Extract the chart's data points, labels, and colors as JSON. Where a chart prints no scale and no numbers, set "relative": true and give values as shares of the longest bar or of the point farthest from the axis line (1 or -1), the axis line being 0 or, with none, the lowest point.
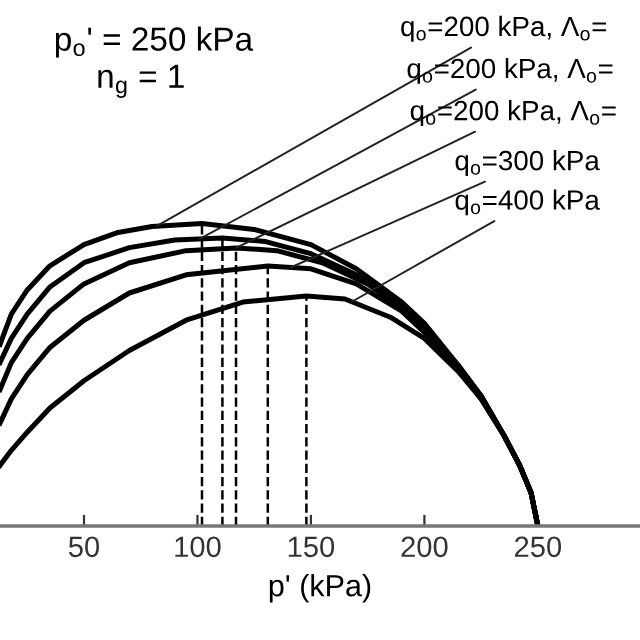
{
  "chart_data": {
    "type": "line",
    "relative": true,
    "xlabel": "p' (kPa)",
    "xlim": [
      13,
      295
    ],
    "xticks": [
      50,
      100,
      150,
      200,
      250
    ],
    "grid": false,
    "marker": "none",
    "line_style": "solid",
    "annotations": [
      "p$_{o}$' = 250 kPa",
      "n$_{g}$ = 1"
    ],
    "series": [
      {
        "name": "q$_{o}$=200 kPa, Λ$_{o}$=",
        "color": "#000000",
        "x": [
          13,
          18,
          25,
          35,
          50,
          65,
          80,
          102,
          125,
          150,
          170,
          190,
          200,
          215,
          225,
          235,
          242,
          247,
          250
        ],
        "values": [
          0.6,
          0.7,
          0.78,
          0.86,
          0.93,
          0.97,
          0.99,
          1.0,
          0.98,
          0.93,
          0.85,
          0.74,
          0.67,
          0.53,
          0.43,
          0.3,
          0.2,
          0.11,
          0
        ]
      },
      {
        "name": "q$_{o}$=200 kPa, Λ$_{o}$=",
        "color": "#000000",
        "x": [
          13,
          18,
          25,
          35,
          50,
          70,
          90,
          111,
          130,
          150,
          170,
          190,
          200,
          215,
          225,
          235,
          242,
          247,
          250
        ],
        "values": [
          0.54,
          0.62,
          0.7,
          0.79,
          0.87,
          0.92,
          0.945,
          0.952,
          0.94,
          0.9,
          0.83,
          0.73,
          0.66,
          0.53,
          0.43,
          0.3,
          0.2,
          0.11,
          0
        ]
      },
      {
        "name": "q$_{o}$=200 kPa, Λ$_{o}$=",
        "color": "#000000",
        "x": [
          13,
          18,
          25,
          35,
          50,
          70,
          95,
          117,
          135,
          155,
          175,
          190,
          200,
          215,
          225,
          235,
          242,
          247,
          250
        ],
        "values": [
          0.45,
          0.54,
          0.62,
          0.71,
          0.8,
          0.87,
          0.91,
          0.919,
          0.91,
          0.87,
          0.8,
          0.72,
          0.65,
          0.52,
          0.43,
          0.3,
          0.2,
          0.11,
          0
        ]
      },
      {
        "name": "q$_{o}$=300 kPa",
        "color": "#000000",
        "x": [
          13,
          18,
          25,
          35,
          50,
          70,
          95,
          131,
          150,
          170,
          190,
          200,
          215,
          225,
          235,
          242,
          247,
          250
        ],
        "values": [
          0.34,
          0.42,
          0.5,
          0.59,
          0.68,
          0.77,
          0.83,
          0.859,
          0.85,
          0.8,
          0.71,
          0.64,
          0.52,
          0.42,
          0.3,
          0.2,
          0.11,
          0
        ]
      },
      {
        "name": "q$_{o}$=400 kPa",
        "color": "#000000",
        "x": [
          13,
          18,
          25,
          35,
          50,
          70,
          95,
          120,
          148,
          165,
          185,
          200,
          215,
          225,
          235,
          242,
          247,
          250
        ],
        "values": [
          0.2,
          0.25,
          0.31,
          0.39,
          0.48,
          0.58,
          0.68,
          0.74,
          0.76,
          0.75,
          0.69,
          0.62,
          0.51,
          0.42,
          0.3,
          0.2,
          0.11,
          0
        ]
      }
    ],
    "ref_lines": [
      {
        "axis": "x",
        "value": 102,
        "color": "#000000",
        "line_style": "dashed"
      },
      {
        "axis": "x",
        "value": 111,
        "color": "#000000",
        "line_style": "dashed"
      },
      {
        "axis": "x",
        "value": 117,
        "color": "#000000",
        "line_style": "dashed"
      },
      {
        "axis": "x",
        "value": 131,
        "color": "#000000",
        "line_style": "dashed"
      },
      {
        "axis": "x",
        "value": 148,
        "color": "#000000",
        "line_style": "dashed"
      }
    ]
  }
}
